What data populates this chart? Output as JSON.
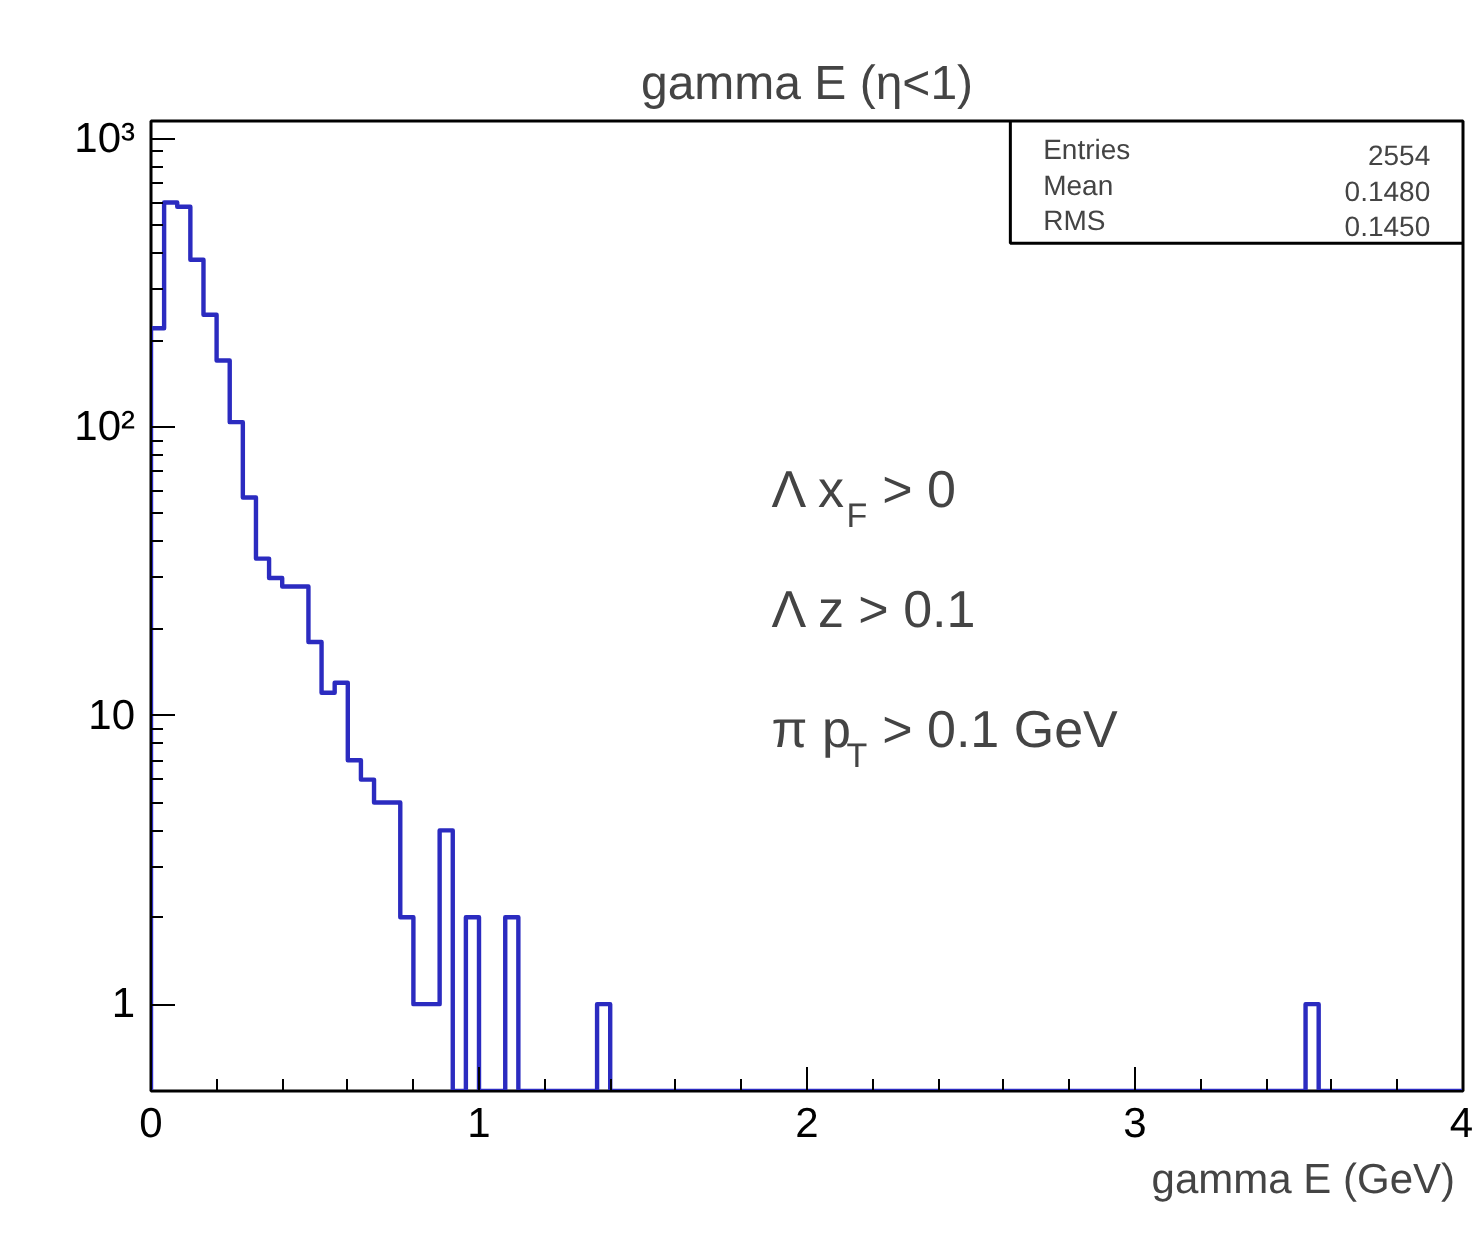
{
  "chart_data": {
    "type": "histogram",
    "title": "gamma E (η<1)",
    "xlabel": "gamma E (GeV)",
    "bins": [
      0,
      0.04,
      0.08,
      0.12,
      0.16,
      0.2,
      0.24,
      0.28,
      0.32,
      0.36,
      0.4,
      0.44,
      0.48,
      0.52,
      0.56,
      0.6,
      0.64,
      0.68,
      0.72,
      0.76,
      0.8,
      0.84,
      0.88,
      0.92,
      0.96,
      1.0,
      1.04,
      1.08,
      1.12,
      1.16,
      1.2,
      1.24,
      1.28,
      1.32,
      1.36,
      1.4,
      1.44,
      1.48,
      1.52,
      1.56,
      1.6,
      1.64,
      1.68,
      1.72,
      1.76,
      1.8,
      1.84,
      1.88,
      1.92,
      1.96,
      2.0,
      2.04,
      2.08,
      2.12,
      2.16,
      2.2,
      2.24,
      2.28,
      2.32,
      2.36,
      2.4,
      2.44,
      2.48,
      2.52,
      2.56,
      2.6,
      2.64,
      2.68,
      2.72,
      2.76,
      2.8,
      2.84,
      2.88,
      2.92,
      2.96,
      3.0,
      3.04,
      3.08,
      3.12,
      3.16,
      3.2,
      3.24,
      3.28,
      3.32,
      3.36,
      3.4,
      3.44,
      3.48,
      3.52,
      3.56,
      3.6,
      3.64,
      3.68,
      3.72,
      3.76,
      3.8,
      3.84,
      3.88,
      3.92,
      3.96,
      4.0
    ],
    "values": [
      220,
      600,
      580,
      380,
      245,
      170,
      104,
      57,
      35,
      30,
      28,
      28,
      18,
      12,
      13,
      7,
      6,
      5,
      5,
      2,
      1,
      1,
      4,
      null,
      2,
      null,
      null,
      2,
      null,
      null,
      null,
      null,
      null,
      null,
      1,
      null,
      null,
      null,
      null,
      null,
      null,
      null,
      null,
      null,
      null,
      null,
      null,
      null,
      null,
      null,
      null,
      null,
      null,
      null,
      null,
      null,
      null,
      null,
      null,
      null,
      null,
      null,
      null,
      null,
      null,
      null,
      null,
      null,
      null,
      null,
      null,
      null,
      null,
      null,
      null,
      null,
      null,
      null,
      null,
      null,
      null,
      null,
      null,
      null,
      null,
      null,
      null,
      null,
      1,
      null,
      null,
      null,
      null,
      null,
      null,
      null,
      null,
      null,
      null,
      null
    ],
    "color": "#2b2bc0",
    "log": true,
    "xlim": [
      0,
      4
    ],
    "ylim": [
      0.5,
      1150
    ],
    "xticks": [
      0,
      1,
      2,
      3,
      4
    ],
    "yticks": [
      1,
      10,
      {
        "value": 100,
        "label": "10²"
      },
      {
        "value": 1000,
        "label": "10³"
      }
    ],
    "grid": false,
    "annotations": [
      "Entries",
      "2554",
      "Mean",
      "0.1480",
      "RMS",
      "0.1450",
      "Λ x$_{F}$ > 0",
      "Λ z > 0.1",
      "π p$_{T}$ > 0.1 GeV"
    ]
  }
}
